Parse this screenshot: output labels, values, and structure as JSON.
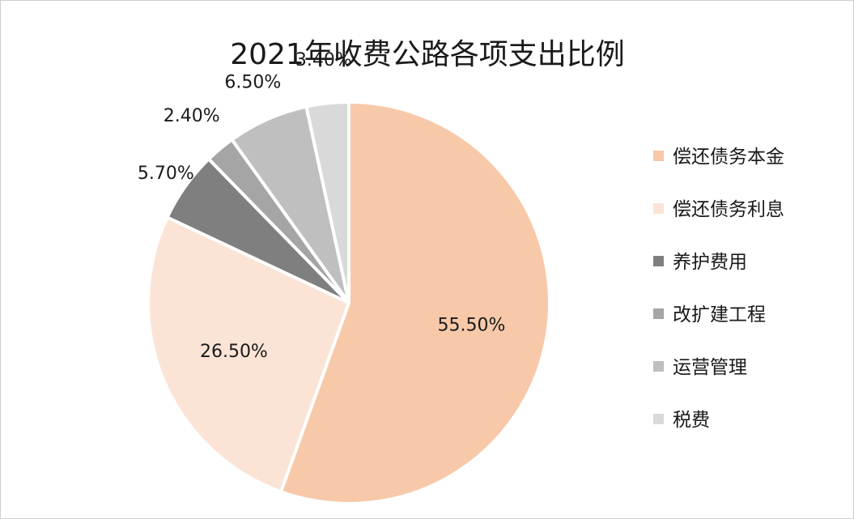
{
  "chart_data": {
    "type": "pie",
    "title": "2021年收费公路各项支出比例",
    "categories": [
      "偿还债务本金",
      "偿还债务利息",
      "养护费用",
      "改扩建工程",
      "运营管理",
      "税费"
    ],
    "values": [
      55.5,
      26.5,
      5.7,
      2.4,
      6.5,
      3.4
    ],
    "data_labels": [
      "55.50%",
      "26.50%",
      "5.70%",
      "2.40%",
      "6.50%",
      "3.40%"
    ],
    "colors": [
      "#f7c9a9",
      "#fbe4d6",
      "#7f7f7f",
      "#a5a5a5",
      "#bfbfbf",
      "#d9d9d9"
    ],
    "start_angle_deg": 0,
    "direction": "clockwise",
    "legend_position": "right"
  }
}
